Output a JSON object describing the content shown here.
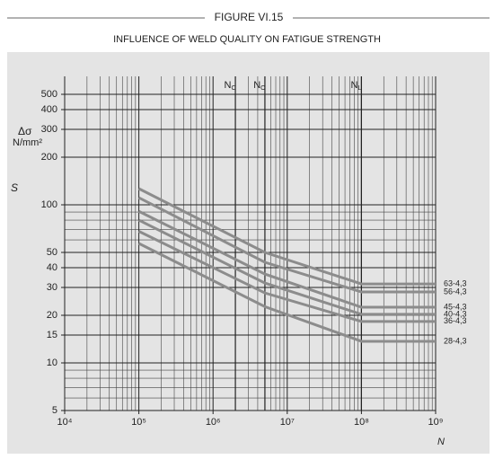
{
  "chart_data": {
    "type": "line",
    "title": "FIGURE VI.15",
    "subtitle": "INFLUENCE OF  WELD QUALITY ON FATIGUE STRENGTH",
    "y_label": "Δσ",
    "y_unit": "N/mm²",
    "y_symbol": "S",
    "x_label": "N",
    "log_x": true,
    "log_y": true,
    "grid": true,
    "xlim": [
      10000,
      1000000000
    ],
    "ylim": [
      5,
      500
    ],
    "xticks": [
      {
        "value": 10000,
        "label": "10⁴"
      },
      {
        "value": 100000,
        "label": "10⁵"
      },
      {
        "value": 1000000,
        "label": "10⁶"
      },
      {
        "value": 10000000,
        "label": "10⁷"
      },
      {
        "value": 100000000,
        "label": "10⁸"
      },
      {
        "value": 1000000000,
        "label": "10⁹"
      }
    ],
    "xminorticks": [
      20000,
      30000,
      40000,
      50000,
      60000,
      70000,
      80000,
      90000,
      200000,
      300000,
      400000,
      500000,
      600000,
      700000,
      800000,
      900000,
      2000000,
      3000000,
      4000000,
      5000000,
      6000000,
      7000000,
      8000000,
      9000000,
      20000000,
      30000000,
      40000000,
      50000000,
      60000000,
      70000000,
      80000000,
      90000000,
      200000000,
      300000000,
      400000000,
      500000000,
      600000000,
      700000000,
      800000000,
      900000000
    ],
    "yticks": [
      5,
      10,
      15,
      20,
      30,
      40,
      50,
      100,
      200,
      300,
      400,
      500
    ],
    "yminorticks": [
      6,
      7,
      8,
      9,
      60,
      70,
      80,
      90
    ],
    "markers": [
      {
        "label": "N",
        "sub": "C",
        "x": 2000000
      },
      {
        "label": "N",
        "sub": "O",
        "x": 5000000
      },
      {
        "label": "N",
        "sub": "L",
        "x": 100000000
      }
    ],
    "x": [
      100000,
      5000000,
      100000000,
      1000000000
    ],
    "series": [
      {
        "name": "63-4,3",
        "color": "#8c8c8c",
        "values": [
          126.6,
          50,
          31.6,
          31.6
        ]
      },
      {
        "name": "56-4,3",
        "color": "#8c8c8c",
        "values": [
          111,
          43.3,
          28.1,
          28.1
        ]
      },
      {
        "name": "45-4,3",
        "color": "#8c8c8c",
        "values": [
          91,
          36.5,
          22.5,
          22.5
        ]
      },
      {
        "name": "40-4,3",
        "color": "#8c8c8c",
        "values": [
          80,
          32,
          20.3,
          20.3
        ]
      },
      {
        "name": "36-4,3",
        "color": "#8c8c8c",
        "values": [
          68,
          27.7,
          18.3,
          18.3
        ]
      },
      {
        "name": "28-4,3",
        "color": "#8c8c8c",
        "values": [
          57,
          22.7,
          13.7,
          13.7
        ]
      }
    ]
  }
}
